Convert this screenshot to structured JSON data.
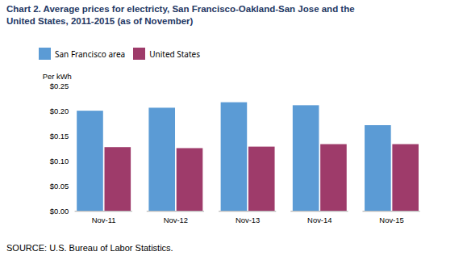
{
  "chart_data": {
    "type": "bar",
    "title": "Chart 2. Average prices for electricty, San Francisco-Oakland-San Jose and the",
    "subtitle": "United States, 2011-2015  (as of November)",
    "ylabel": "Per kWh",
    "source": "SOURCE: U.S. Bureau of Labor Statistics.",
    "categories": [
      "Nov-11",
      "Nov-12",
      "Nov-13",
      "Nov-14",
      "Nov-15"
    ],
    "series": [
      {
        "name": "San Francisco area",
        "color": "#5B9BD5",
        "values": [
          0.201,
          0.207,
          0.218,
          0.212,
          0.172
        ]
      },
      {
        "name": "United States",
        "color": "#9E3B6A",
        "values": [
          0.128,
          0.126,
          0.129,
          0.134,
          0.134
        ]
      }
    ],
    "ylim": [
      0,
      0.25
    ],
    "yticks": [
      {
        "value": 0.0,
        "label": "$0.00"
      },
      {
        "value": 0.05,
        "label": "$0.05"
      },
      {
        "value": 0.1,
        "label": "$0.10"
      },
      {
        "value": 0.15,
        "label": "$0.15"
      },
      {
        "value": 0.2,
        "label": "$0.20"
      },
      {
        "value": 0.25,
        "label": "$0.25"
      }
    ],
    "legend": "upper left",
    "grid": false
  }
}
